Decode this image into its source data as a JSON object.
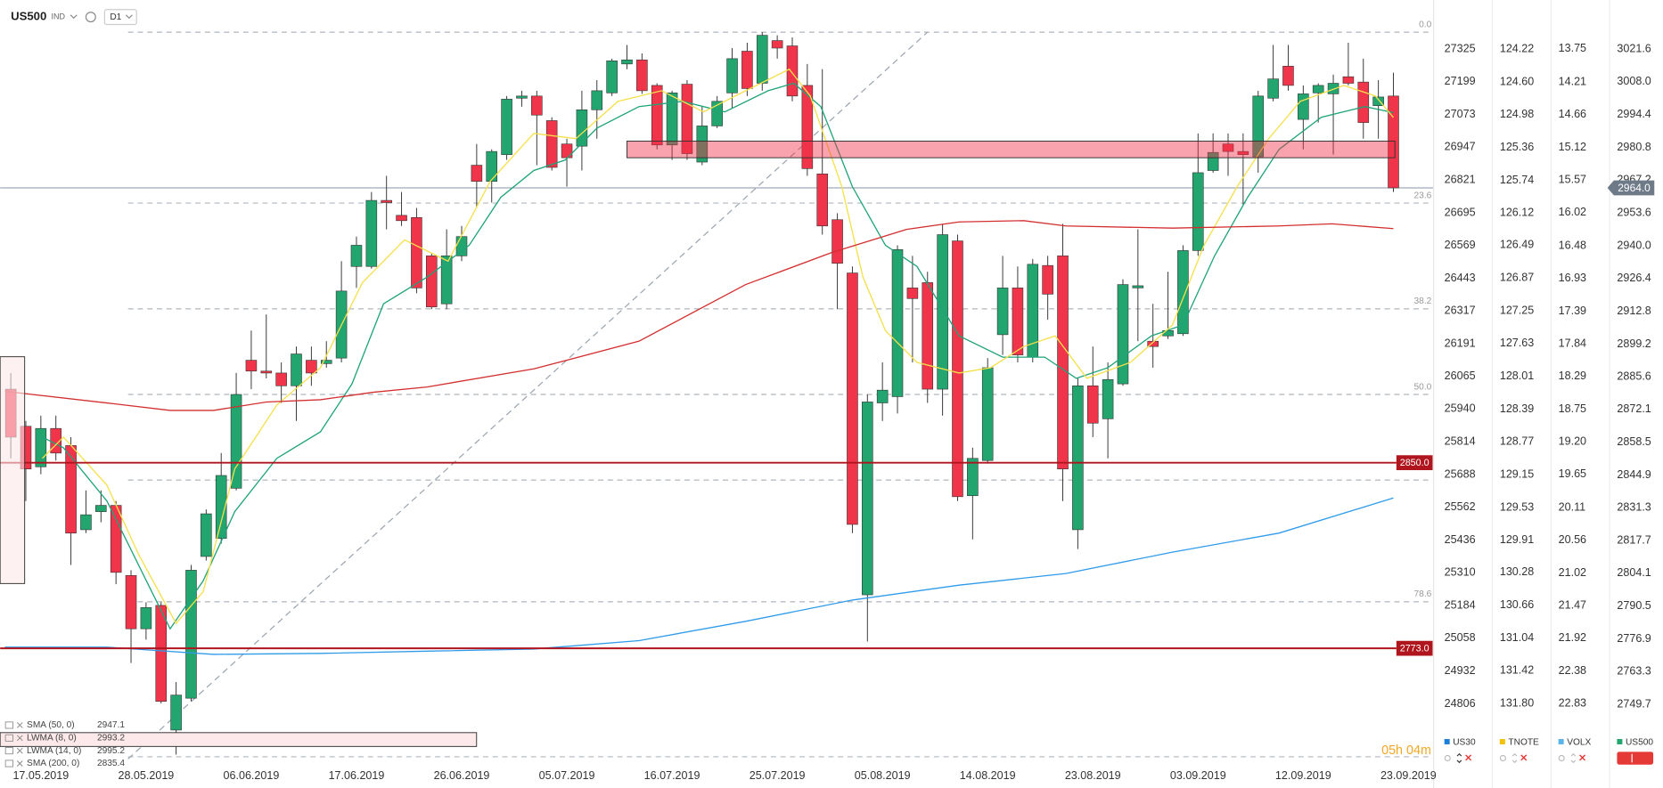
{
  "chart_data": {
    "type": "candlestick",
    "header": {
      "symbol": "US500",
      "market": "IND",
      "timeframe": "D1"
    },
    "countdown": "05h 04m",
    "up_color": "#22a56f",
    "down_color": "#f0344a",
    "open": [
      2880.5,
      2865.1,
      2848.3,
      2864.2,
      2857.1,
      2822.2,
      2829.7,
      2832.3,
      2803.2,
      2781.1,
      2790.8,
      2739.1,
      2752.3,
      2811.1,
      2818.6,
      2839.4,
      2892.5,
      2888.0,
      2887.2,
      2881.9,
      2892.5,
      2891.1,
      2893.4,
      2931.4,
      2931.4,
      2958.8,
      2952.6,
      2951.7,
      2935.8,
      2915.9,
      2935.8,
      2973.4,
      2966.7,
      2977.8,
      3001.2,
      3002.1,
      2991.9,
      2982.2,
      2981.3,
      2996.4,
      3003.4,
      3015.4,
      3017.1,
      3006.5,
      2981.8,
      3007.0,
      2974.7,
      2989.7,
      3003.4,
      3020.7,
      3007.4,
      3025.1,
      3022.9,
      3006.5,
      2969.8,
      2950.8,
      2928.7,
      2795.2,
      2874.8,
      2877.4,
      2922.5,
      2924.7,
      2880.5,
      2942.0,
      2836.3,
      2850.9,
      2903.1,
      2922.5,
      2893.8,
      2931.8,
      2935.8,
      2822.2,
      2881.9,
      2868.2,
      2882.7,
      2922.5,
      2900.4,
      2902.6,
      2903.5,
      2938.0,
      2971.2,
      2982.2,
      2979.1,
      2976.9,
      3001.2,
      3014.5,
      2992.4,
      3003.4,
      3003.0,
      3010.1,
      3007.9,
      2998.1,
      3002.1
    ],
    "high": [
      2887.2,
      2867.3,
      2869.5,
      2869.5,
      2860.6,
      2838.5,
      2838.5,
      2834.1,
      2805.4,
      2792.1,
      2792.1,
      2759.0,
      2807.6,
      2830.6,
      2854.0,
      2887.2,
      2904.8,
      2911.5,
      2891.6,
      2898.2,
      2898.2,
      2900.4,
      2933.6,
      2943.8,
      2962.3,
      2969.0,
      2962.3,
      2955.7,
      2936.7,
      2946.8,
      2948.2,
      2982.2,
      2980.0,
      3002.1,
      3004.3,
      3004.3,
      2993.3,
      2984.4,
      3004.3,
      3008.7,
      3017.6,
      3023.3,
      3019.8,
      3007.4,
      3004.3,
      3008.7,
      2997.7,
      3002.1,
      3022.0,
      3024.2,
      3028.6,
      3027.3,
      3026.4,
      3015.4,
      3013.2,
      2953.5,
      2931.4,
      2878.3,
      2891.6,
      2940.2,
      2935.8,
      2929.2,
      2949.1,
      2944.6,
      2856.2,
      2893.4,
      2935.8,
      2931.4,
      2934.5,
      2935.8,
      2949.1,
      2885.0,
      2898.2,
      2891.6,
      2926.1,
      2946.8,
      2915.9,
      2929.2,
      2940.2,
      2986.6,
      2986.6,
      2986.6,
      2986.6,
      3004.3,
      3023.3,
      3023.3,
      3006.5,
      3007.4,
      3011.0,
      3024.2,
      3017.6,
      3008.7,
      3011.8
    ],
    "low": [
      2851.8,
      2834.1,
      2845.2,
      2850.9,
      2807.6,
      2820.8,
      2825.3,
      2799.6,
      2766.9,
      2776.6,
      2750.1,
      2728.9,
      2751.0,
      2809.4,
      2816.4,
      2838.5,
      2880.5,
      2885.0,
      2874.8,
      2867.3,
      2881.9,
      2889.4,
      2891.6,
      2922.5,
      2930.5,
      2946.8,
      2948.2,
      2920.3,
      2913.7,
      2913.7,
      2933.6,
      2955.7,
      2957.9,
      2975.6,
      2997.7,
      2973.4,
      2971.2,
      2964.5,
      2971.2,
      2984.4,
      3002.1,
      3013.2,
      3003.0,
      2980.0,
      2975.6,
      2975.6,
      2973.4,
      2988.8,
      2996.8,
      3002.1,
      3004.3,
      3017.6,
      2999.9,
      2969.0,
      2944.6,
      2913.7,
      2820.8,
      2775.8,
      2867.3,
      2870.4,
      2891.6,
      2874.8,
      2869.5,
      2834.1,
      2818.2,
      2849.6,
      2894.7,
      2891.6,
      2891.6,
      2909.3,
      2834.1,
      2814.2,
      2860.6,
      2851.8,
      2881.9,
      2900.4,
      2889.4,
      2901.3,
      2902.6,
      2935.8,
      2970.3,
      2969.0,
      2957.0,
      2970.3,
      2999.9,
      3004.3,
      2980.0,
      2991.1,
      2977.8,
      3006.5,
      2984.4,
      2984.4,
      2962.3
    ],
    "close": [
      2860.6,
      2847.4,
      2864.2,
      2854.0,
      2820.8,
      2828.4,
      2832.3,
      2804.5,
      2781.1,
      2789.9,
      2751.0,
      2753.6,
      2805.4,
      2828.8,
      2844.7,
      2878.3,
      2888.0,
      2887.2,
      2881.9,
      2895.1,
      2887.2,
      2892.5,
      2921.2,
      2940.2,
      2958.8,
      2957.9,
      2950.4,
      2922.5,
      2914.6,
      2935.8,
      2943.8,
      2966.7,
      2979.1,
      3000.8,
      3002.1,
      2994.2,
      2972.5,
      2976.5,
      2996.4,
      3004.3,
      3016.7,
      3017.1,
      3004.3,
      2981.8,
      3003.4,
      2978.2,
      2989.7,
      2999.9,
      3017.6,
      3005.2,
      3027.3,
      3022.0,
      3002.1,
      2972.0,
      2948.2,
      2932.7,
      2824.4,
      2875.2,
      2880.1,
      2938.4,
      2918.1,
      2880.5,
      2944.6,
      2835.9,
      2851.8,
      2889.4,
      2922.5,
      2894.7,
      2932.3,
      2919.9,
      2847.4,
      2881.9,
      2866.4,
      2884.5,
      2923.9,
      2923.4,
      2898.2,
      2904.8,
      2938.0,
      2970.3,
      2978.7,
      2979.1,
      2977.8,
      3002.1,
      3009.2,
      3006.5,
      3003.0,
      3006.5,
      3007.4,
      3007.4,
      2991.1,
      3001.7,
      2964.0
    ],
    "xticks": [
      {
        "value": 2,
        "label": "17.05.2019"
      },
      {
        "value": 9,
        "label": "28.05.2019"
      },
      {
        "value": 16,
        "label": "06.06.2019"
      },
      {
        "value": 23,
        "label": "17.06.2019"
      },
      {
        "value": 30,
        "label": "26.06.2019"
      },
      {
        "value": 37,
        "label": "05.07.2019"
      },
      {
        "value": 44,
        "label": "16.07.2019"
      },
      {
        "value": 51,
        "label": "25.07.2019"
      },
      {
        "value": 58,
        "label": "05.08.2019"
      },
      {
        "value": 65,
        "label": "14.08.2019"
      },
      {
        "value": 72,
        "label": "23.08.2019"
      },
      {
        "value": 79,
        "label": "03.09.2019"
      },
      {
        "value": 86,
        "label": "12.09.2019"
      },
      {
        "value": 93,
        "label": "23.09.2019"
      }
    ],
    "axes": [
      {
        "name": "US30",
        "color": "#1e7fd8",
        "ylim": [
          24584.7,
          27480.7
        ],
        "yticks": [
          27325,
          27199,
          27073,
          26947,
          26821,
          26695,
          26569,
          26443,
          26317,
          26191,
          26065,
          25940,
          25814,
          25688,
          25562,
          25436,
          25310,
          25184,
          25058,
          24932,
          24806
        ]
      },
      {
        "name": "TNOTE",
        "color": "#f2c200",
        "ylim": [
          132.47,
          123.75
        ],
        "yticks": [
          124.22,
          {
            "value": 124.6,
            "label": "124.60"
          },
          124.98,
          125.36,
          125.74,
          126.12,
          126.49,
          126.87,
          127.25,
          127.63,
          128.01,
          128.39,
          128.77,
          129.15,
          129.53,
          129.91,
          130.28,
          130.66,
          131.04,
          131.42,
          {
            "value": 131.8,
            "label": "131.80"
          }
        ]
      },
      {
        "name": "VOLX",
        "color": "#5ab4e8",
        "ylim": [
          23.63,
          13.19
        ],
        "yticks": [
          13.75,
          14.21,
          14.66,
          15.12,
          15.57,
          16.02,
          16.48,
          16.93,
          17.39,
          17.84,
          18.29,
          18.75,
          {
            "value": 19.2,
            "label": "19.20"
          },
          19.65,
          20.11,
          20.56,
          21.02,
          21.47,
          21.92,
          22.38,
          22.83
        ]
      },
      {
        "name": "US500",
        "color": "#22a56f",
        "ylim": [
          2726.1,
          3038.4
        ],
        "yticks": [
          3021.6,
          {
            "value": 3008,
            "label": "3008.0"
          },
          2994.4,
          2980.8,
          2967.2,
          2953.6,
          {
            "value": 2940,
            "label": "2940.0"
          },
          2926.4,
          2912.8,
          2899.2,
          2885.6,
          2872.1,
          2858.5,
          2844.9,
          2831.3,
          2817.7,
          2804.1,
          2790.5,
          2776.9,
          2763.3,
          2749.7
        ]
      }
    ],
    "series": [
      {
        "name": "SMA (200, 0)",
        "color": "#2f9bea",
        "x": [
          -0.4,
          6.4,
          13.5,
          20.6,
          27.7,
          34.8,
          41.8,
          48.9,
          56.0,
          63.1,
          70.2,
          77.3,
          84.4,
          92
        ],
        "values": [
          2773.5,
          2773.5,
          2770.5,
          2770.9,
          2771.8,
          2772.7,
          2776.2,
          2784.2,
          2793.0,
          2799.2,
          2804.0,
          2812.9,
          2820.8,
          2835.4
        ]
      },
      {
        "name": "LWMA (14, 0)",
        "color": "#1fa37a",
        "x": [
          2.1,
          3.5,
          6.4,
          8.5,
          10.6,
          12.8,
          14.9,
          17.7,
          20.6,
          22.7,
          24.8,
          27.7,
          30.5,
          32.6,
          34.8,
          36.9,
          39.0,
          41.8,
          44.7,
          47.5,
          50.4,
          52.1,
          53.9,
          56.0,
          58.2,
          60.3,
          63.1,
          66.0,
          68.8,
          70.9,
          73.0,
          75.9,
          78.0,
          80.1,
          82.3,
          84.4,
          87.2,
          90.1,
          92
        ],
        "values": [
          2860.6,
          2856.2,
          2834.1,
          2807.6,
          2781.1,
          2801.0,
          2829.7,
          2851.8,
          2862.8,
          2882.7,
          2915.9,
          2927.0,
          2940.2,
          2960.1,
          2971.2,
          2975.6,
          2988.8,
          2997.7,
          2999.9,
          2995.5,
          3004.3,
          3007.4,
          2997.7,
          2964.5,
          2940.2,
          2931.4,
          2902.6,
          2893.8,
          2893.8,
          2885.0,
          2889.4,
          2902.6,
          2907.1,
          2935.8,
          2960.1,
          2980.0,
          2993.3,
          2997.7,
          2995.2
        ]
      },
      {
        "name": "LWMA (8, 0)",
        "color": "#f5e04a",
        "x": [
          2.1,
          3.5,
          6.4,
          8.5,
          11.0,
          12.8,
          14.9,
          17.7,
          20.6,
          23.4,
          26.2,
          29.1,
          31.9,
          34.8,
          37.6,
          40.4,
          43.3,
          46.1,
          48.9,
          51.8,
          53.2,
          55.3,
          56.7,
          58.2,
          60.3,
          63.1,
          65.2,
          67.4,
          69.5,
          71.6,
          74.5,
          77.3,
          79.4,
          81.6,
          83.7,
          85.8,
          88.7,
          90.8,
          92
        ],
        "values": [
          2851.8,
          2860.6,
          2840.7,
          2812.0,
          2783.3,
          2796.5,
          2847.4,
          2873.9,
          2889.4,
          2924.7,
          2942.4,
          2933.6,
          2966.7,
          2986.6,
          2984.4,
          2999.9,
          3004.3,
          2995.5,
          3004.3,
          3013.2,
          3002.1,
          2964.5,
          2927.0,
          2904.8,
          2891.6,
          2887.2,
          2889.4,
          2898.2,
          2902.6,
          2885.0,
          2891.6,
          2907.1,
          2940.2,
          2964.5,
          2984.4,
          2999.9,
          3006.5,
          3002.1,
          2993.2
        ]
      },
      {
        "name": "SMA (50, 0)",
        "color": "#d32f2f",
        "x": [
          -0.4,
          6.4,
          10.6,
          13.5,
          17.0,
          20.6,
          24.1,
          27.7,
          34.8,
          41.8,
          48.9,
          54.6,
          59.6,
          63.1,
          67.4,
          70.2,
          77.3,
          84.4,
          87.9,
          92
        ],
        "values": [
          2879.6,
          2874.8,
          2871.7,
          2871.7,
          2875.2,
          2876.1,
          2879.2,
          2881.4,
          2888.9,
          2900.4,
          2923.9,
          2937.1,
          2946.8,
          2949.9,
          2950.4,
          2948.2,
          2947.3,
          2948.2,
          2949.1,
          2947.1
        ]
      }
    ],
    "fib_trendline": {
      "x": [
        7.8,
        61
      ],
      "values": [
        2727.1,
        3028.6
      ]
    },
    "fib_levels": [
      {
        "value": 3028.6,
        "label": "0.0"
      },
      {
        "value": 2957.7,
        "label": "23.6"
      },
      {
        "value": 2913.8,
        "label": "38.2"
      },
      {
        "value": 2878.3,
        "label": "50.0"
      },
      {
        "value": 2842.8,
        "label": null
      },
      {
        "value": 2792.3,
        "label": "78.6"
      },
      {
        "value": 2728.0,
        "label": null
      }
    ],
    "levels": [
      {
        "value": 2850,
        "label": "2850.0"
      },
      {
        "value": 2773,
        "label": "2773.0"
      }
    ],
    "current_price": {
      "value": 2964,
      "label": "2964.0"
    },
    "zone": {
      "from": 41,
      "to": 92.1,
      "low": 2976.5,
      "high": 2983.4
    }
  }
}
